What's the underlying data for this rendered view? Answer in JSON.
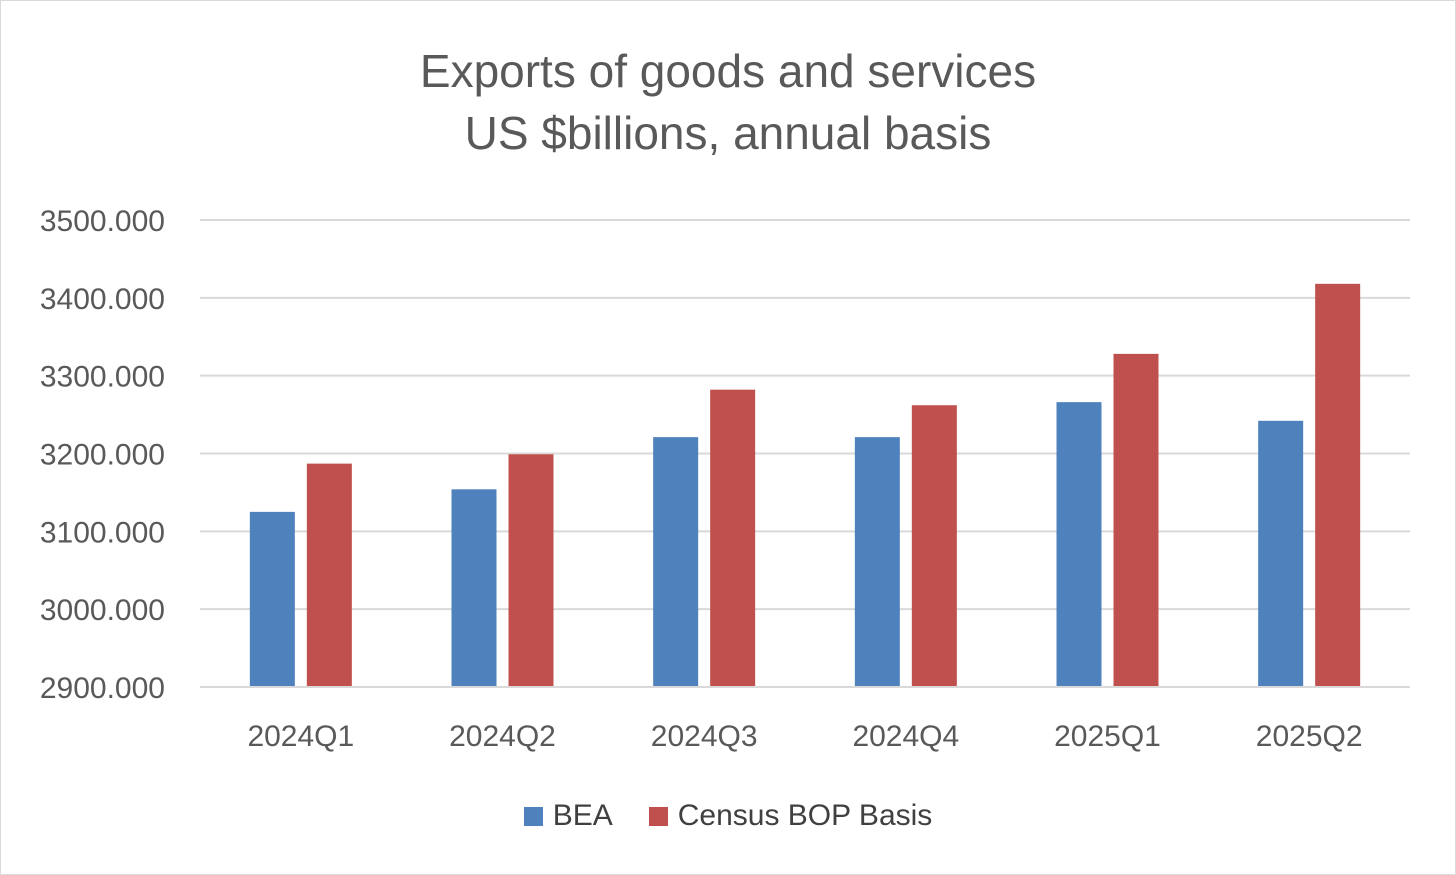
{
  "chart_data": {
    "type": "bar",
    "title": "Exports of goods and services",
    "subtitle": "US $billions, annual basis",
    "categories": [
      "2024Q1",
      "2024Q2",
      "2024Q3",
      "2024Q4",
      "2025Q1",
      "2025Q2"
    ],
    "series": [
      {
        "name": "BEA",
        "color": "#4f81bd",
        "values": [
          3125,
          3154,
          3221,
          3221,
          3266,
          3242
        ]
      },
      {
        "name": "Census BOP Basis",
        "color": "#c0504d",
        "values": [
          3187,
          3199,
          3282,
          3262,
          3328,
          3418
        ]
      }
    ],
    "yticks": [
      "3500.000",
      "3400.000",
      "3300.000",
      "3200.000",
      "3100.000",
      "3000.000",
      "2900.000"
    ],
    "ylim": [
      2900,
      3500
    ],
    "grid": true,
    "legend": "bottom"
  }
}
